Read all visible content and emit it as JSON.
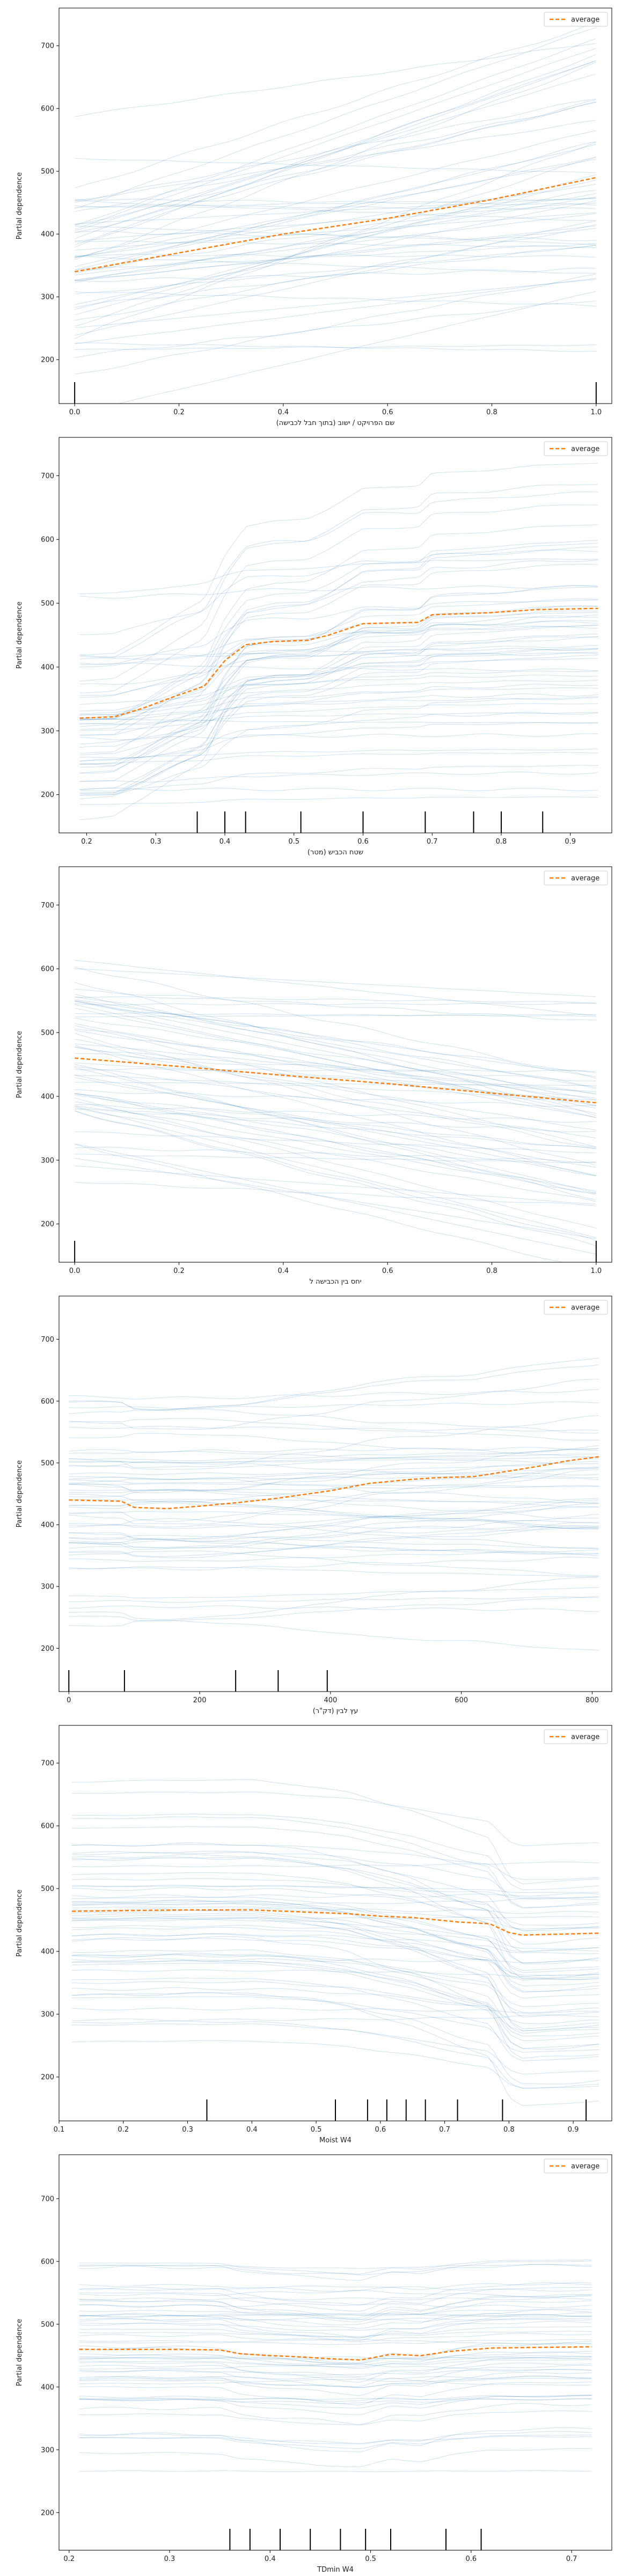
{
  "chart_data": [
    {
      "type": "line",
      "xlabel": "שם הפרויקט / ישוב (בתוך חבל לכבישה)",
      "ylabel": "Partial dependence",
      "xlim": [
        -0.03,
        1.03
      ],
      "ylim": [
        130,
        760
      ],
      "xticks": [
        0.0,
        0.2,
        0.4,
        0.6,
        0.8,
        1.0
      ],
      "xtick_labels": [
        "0.0",
        "0.2",
        "0.4",
        "0.6",
        "0.8",
        "1.0"
      ],
      "yticks": [
        200,
        300,
        400,
        500,
        600,
        700
      ],
      "ytick_labels": [
        "200",
        "300",
        "400",
        "500",
        "600",
        "700"
      ],
      "legend": {
        "label": "average",
        "placement": "top-right"
      },
      "average": {
        "x": [
          0,
          0.2,
          0.4,
          0.6,
          0.8,
          1.0
        ],
        "y": [
          340,
          370,
          400,
          425,
          455,
          490
        ]
      },
      "ice_profile": {
        "x": [
          0,
          1
        ],
        "shape": [
          0,
          1
        ],
        "amplitude_range": [
          -40,
          320
        ]
      },
      "rug": [
        0.0,
        1.0
      ],
      "ice_count": 60,
      "ice_seed": 11
    },
    {
      "type": "line",
      "xlabel": "שטח הכביש (מטר)",
      "ylabel": "Partial dependence",
      "xlim": [
        0.16,
        0.96
      ],
      "ylim": [
        140,
        760
      ],
      "xticks": [
        0.2,
        0.3,
        0.4,
        0.5,
        0.6,
        0.7,
        0.8,
        0.9
      ],
      "xtick_labels": [
        "0.2",
        "0.3",
        "0.4",
        "0.5",
        "0.6",
        "0.7",
        "0.8",
        "0.9"
      ],
      "yticks": [
        200,
        300,
        400,
        500,
        600,
        700
      ],
      "ytick_labels": [
        "200",
        "300",
        "400",
        "500",
        "600",
        "700"
      ],
      "legend": {
        "label": "average",
        "placement": "top-right"
      },
      "average": {
        "x": [
          0.19,
          0.24,
          0.28,
          0.33,
          0.37,
          0.4,
          0.43,
          0.47,
          0.52,
          0.55,
          0.6,
          0.68,
          0.7,
          0.78,
          0.85,
          0.94
        ],
        "y": [
          320,
          322,
          335,
          355,
          370,
          410,
          435,
          440,
          442,
          450,
          468,
          470,
          482,
          485,
          490,
          492
        ]
      },
      "ice_profile": {
        "x": [
          0.19,
          0.24,
          0.28,
          0.33,
          0.37,
          0.4,
          0.43,
          0.47,
          0.52,
          0.55,
          0.6,
          0.68,
          0.7,
          0.78,
          0.85,
          0.94
        ],
        "shape": [
          0,
          0.01,
          0.09,
          0.21,
          0.29,
          0.52,
          0.67,
          0.7,
          0.71,
          0.76,
          0.87,
          0.88,
          0.95,
          0.96,
          0.99,
          1.0
        ],
        "amplitude_range": [
          -10,
          330
        ]
      },
      "rug": [
        0.36,
        0.4,
        0.43,
        0.51,
        0.6,
        0.69,
        0.76,
        0.8,
        0.86
      ],
      "ice_count": 60,
      "ice_seed": 23
    },
    {
      "type": "line",
      "xlabel": "יחס בין הכבישה ל",
      "ylabel": "Partial dependence",
      "xlim": [
        -0.03,
        1.03
      ],
      "ylim": [
        140,
        760
      ],
      "xticks": [
        0.0,
        0.2,
        0.4,
        0.6,
        0.8,
        1.0
      ],
      "xtick_labels": [
        "0.0",
        "0.2",
        "0.4",
        "0.6",
        "0.8",
        "1.0"
      ],
      "yticks": [
        200,
        300,
        400,
        500,
        600,
        700
      ],
      "ytick_labels": [
        "200",
        "300",
        "400",
        "500",
        "600",
        "700"
      ],
      "legend": {
        "label": "average",
        "placement": "top-right"
      },
      "average": {
        "x": [
          0,
          0.2,
          0.4,
          0.6,
          0.8,
          1.0
        ],
        "y": [
          460,
          447,
          433,
          420,
          405,
          390
        ]
      },
      "ice_profile": {
        "x": [
          0,
          1
        ],
        "shape": [
          0,
          1
        ],
        "amplitude_range": [
          -220,
          10
        ]
      },
      "rug": [
        0.0,
        1.0
      ],
      "ice_count": 60,
      "ice_seed": 37
    },
    {
      "type": "line",
      "xlabel": "עץ לבין (דק\"ר)",
      "ylabel": "Partial dependence",
      "xlim": [
        -15,
        830
      ],
      "ylim": [
        130,
        770
      ],
      "xticks": [
        0,
        200,
        400,
        600,
        800
      ],
      "xtick_labels": [
        "0",
        "200",
        "400",
        "600",
        "800"
      ],
      "yticks": [
        200,
        300,
        400,
        500,
        600,
        700
      ],
      "ytick_labels": [
        "200",
        "300",
        "400",
        "500",
        "600",
        "700"
      ],
      "legend": {
        "label": "average",
        "placement": "top-right"
      },
      "average": {
        "x": [
          0,
          80,
          100,
          150,
          200,
          260,
          320,
          400,
          460,
          520,
          560,
          620,
          680,
          720,
          760,
          810
        ],
        "y": [
          440,
          438,
          428,
          426,
          430,
          436,
          443,
          455,
          467,
          473,
          476,
          478,
          488,
          495,
          503,
          510
        ]
      },
      "ice_profile": {
        "x": [
          0,
          80,
          100,
          150,
          200,
          260,
          320,
          400,
          460,
          520,
          560,
          620,
          680,
          720,
          760,
          810
        ],
        "shape": [
          0.14,
          0.13,
          0,
          -0.03,
          0,
          0.08,
          0.2,
          0.36,
          0.52,
          0.6,
          0.64,
          0.68,
          0.8,
          0.88,
          0.96,
          1.0
        ],
        "amplitude_range": [
          -50,
          90
        ]
      },
      "rug": [
        0,
        85,
        255,
        320,
        395
      ],
      "ice_count": 60,
      "ice_seed": 53
    },
    {
      "type": "line",
      "xlabel": "Moist W4",
      "ylabel": "Partial dependence",
      "xlim": [
        0.1,
        0.96
      ],
      "ylim": [
        130,
        760
      ],
      "xticks": [
        0.1,
        0.2,
        0.3,
        0.4,
        0.5,
        0.6,
        0.7,
        0.8,
        0.9
      ],
      "xtick_labels": [
        "0.1",
        "0.2",
        "0.3",
        "0.4",
        "0.5",
        "0.6",
        "0.7",
        "0.8",
        "0.9"
      ],
      "yticks": [
        200,
        300,
        400,
        500,
        600,
        700
      ],
      "ytick_labels": [
        "200",
        "300",
        "400",
        "500",
        "600",
        "700"
      ],
      "legend": {
        "label": "average",
        "placement": "top-right"
      },
      "average": {
        "x": [
          0.12,
          0.2,
          0.3,
          0.4,
          0.5,
          0.55,
          0.6,
          0.65,
          0.7,
          0.72,
          0.77,
          0.8,
          0.82,
          0.9,
          0.94
        ],
        "y": [
          464,
          465,
          466,
          466,
          462,
          460,
          456,
          454,
          449,
          447,
          444,
          430,
          426,
          428,
          429
        ]
      },
      "ice_profile": {
        "x": [
          0.12,
          0.2,
          0.3,
          0.4,
          0.5,
          0.55,
          0.6,
          0.65,
          0.7,
          0.72,
          0.77,
          0.8,
          0.82,
          0.9,
          0.94
        ],
        "shape": [
          1.0,
          1.01,
          1.02,
          1.02,
          0.95,
          0.9,
          0.8,
          0.72,
          0.6,
          0.55,
          0.45,
          0.08,
          0,
          0.03,
          0.05
        ],
        "amplitude_range": [
          -20,
          200
        ]
      },
      "rug": [
        0.33,
        0.53,
        0.58,
        0.61,
        0.64,
        0.67,
        0.72,
        0.79,
        0.92
      ],
      "ice_count": 60,
      "ice_seed": 71
    },
    {
      "type": "line",
      "xlabel": "TDmin W4",
      "ylabel": "Partial dependence",
      "xlim": [
        0.19,
        0.74
      ],
      "ylim": [
        140,
        770
      ],
      "xticks": [
        0.2,
        0.3,
        0.4,
        0.5,
        0.6,
        0.7
      ],
      "xtick_labels": [
        "0.2",
        "0.3",
        "0.4",
        "0.5",
        "0.6",
        "0.7"
      ],
      "yticks": [
        200,
        300,
        400,
        500,
        600,
        700
      ],
      "ytick_labels": [
        "200",
        "300",
        "400",
        "500",
        "600",
        "700"
      ],
      "legend": {
        "label": "average",
        "placement": "top-right"
      },
      "average": {
        "x": [
          0.21,
          0.3,
          0.35,
          0.37,
          0.4,
          0.43,
          0.46,
          0.49,
          0.52,
          0.55,
          0.58,
          0.62,
          0.66,
          0.72
        ],
        "y": [
          460,
          460,
          459,
          453,
          450,
          448,
          445,
          443,
          452,
          450,
          457,
          462,
          463,
          464
        ]
      },
      "ice_profile": {
        "x": [
          0.21,
          0.3,
          0.35,
          0.37,
          0.4,
          0.43,
          0.46,
          0.49,
          0.52,
          0.55,
          0.58,
          0.62,
          0.66,
          0.72
        ],
        "shape": [
          0.8,
          0.8,
          0.78,
          0.5,
          0.35,
          0.25,
          0.1,
          0,
          0.45,
          0.35,
          0.7,
          0.95,
          1.0,
          1.02
        ],
        "amplitude_range": [
          -10,
          40
        ]
      },
      "rug": [
        0.36,
        0.38,
        0.41,
        0.44,
        0.47,
        0.495,
        0.52,
        0.575,
        0.61
      ],
      "ice_count": 60,
      "ice_seed": 89
    }
  ],
  "colors": {
    "ice": "#1f77b4",
    "average": "#ff7f0e",
    "axes": "#000000",
    "legend_border": "#cccccc"
  }
}
